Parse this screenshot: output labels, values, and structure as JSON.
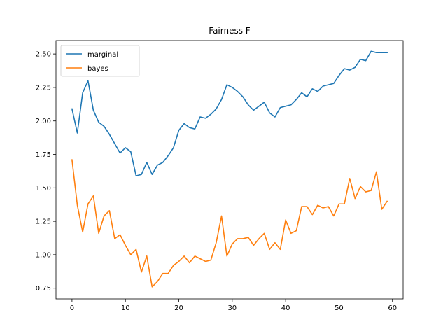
{
  "chart_data": {
    "type": "line",
    "title": "Fairness F",
    "xlabel": "",
    "ylabel": "",
    "xlim": [
      -3,
      62
    ],
    "ylim": [
      0.67,
      2.6
    ],
    "xticks": [
      0,
      10,
      20,
      30,
      40,
      50,
      60
    ],
    "yticks": [
      0.75,
      1.0,
      1.25,
      1.5,
      1.75,
      2.0,
      2.25,
      2.5
    ],
    "ytick_labels": [
      "0.75",
      "1.00",
      "1.25",
      "1.50",
      "1.75",
      "2.00",
      "2.25",
      "2.50"
    ],
    "legend_position": "top-left",
    "grid": false,
    "x": [
      0,
      1,
      2,
      3,
      4,
      5,
      6,
      7,
      8,
      9,
      10,
      11,
      12,
      13,
      14,
      15,
      16,
      17,
      18,
      19,
      20,
      21,
      22,
      23,
      24,
      25,
      26,
      27,
      28,
      29,
      30,
      31,
      32,
      33,
      34,
      35,
      36,
      37,
      38,
      39,
      40,
      41,
      42,
      43,
      44,
      45,
      46,
      47,
      48,
      49,
      50,
      51,
      52,
      53,
      54,
      55,
      56,
      57,
      58,
      59
    ],
    "series": [
      {
        "name": "marginal",
        "color": "#1f77b4",
        "values": [
          2.09,
          1.91,
          2.21,
          2.3,
          2.08,
          1.99,
          1.96,
          1.9,
          1.83,
          1.76,
          1.8,
          1.77,
          1.59,
          1.6,
          1.69,
          1.6,
          1.67,
          1.69,
          1.74,
          1.8,
          1.93,
          1.98,
          1.95,
          1.94,
          2.03,
          2.02,
          2.05,
          2.09,
          2.16,
          2.27,
          2.25,
          2.22,
          2.18,
          2.12,
          2.08,
          2.11,
          2.14,
          2.06,
          2.03,
          2.1,
          2.11,
          2.12,
          2.16,
          2.21,
          2.18,
          2.24,
          2.22,
          2.26,
          2.27,
          2.28,
          2.34,
          2.39,
          2.38,
          2.4,
          2.46,
          2.45,
          2.52,
          2.51,
          2.51,
          2.51
        ]
      },
      {
        "name": "bayes",
        "color": "#ff7f0e",
        "values": [
          1.71,
          1.37,
          1.17,
          1.38,
          1.44,
          1.16,
          1.29,
          1.33,
          1.12,
          1.15,
          1.07,
          1.0,
          1.04,
          0.87,
          0.99,
          0.76,
          0.8,
          0.86,
          0.86,
          0.92,
          0.95,
          0.99,
          0.94,
          0.99,
          0.97,
          0.95,
          0.96,
          1.09,
          1.29,
          0.99,
          1.08,
          1.12,
          1.12,
          1.13,
          1.07,
          1.12,
          1.16,
          1.04,
          1.09,
          1.04,
          1.26,
          1.16,
          1.18,
          1.36,
          1.36,
          1.3,
          1.37,
          1.35,
          1.36,
          1.29,
          1.38,
          1.38,
          1.57,
          1.42,
          1.51,
          1.47,
          1.48,
          1.62,
          1.34,
          1.4
        ]
      }
    ]
  }
}
